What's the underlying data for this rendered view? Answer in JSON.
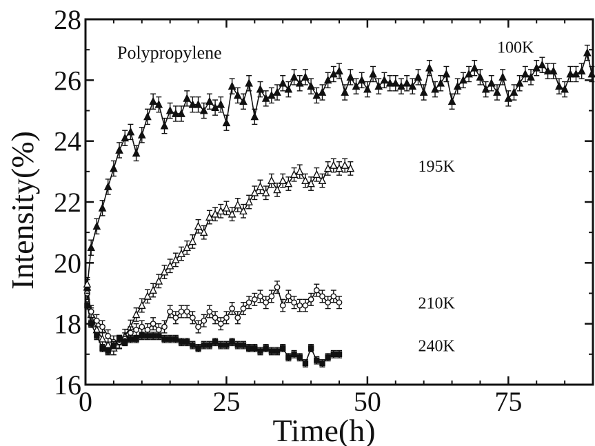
{
  "chart_data": {
    "type": "scatter",
    "title": "",
    "annotation": "Polypropylene",
    "xlabel": "Time(h)",
    "ylabel": "Intensity(%)",
    "xlim": [
      0,
      90
    ],
    "ylim": [
      16,
      28
    ],
    "x_ticks": [
      0,
      25,
      50,
      75
    ],
    "x_tick_labels": [
      "0",
      "25",
      "50",
      "75"
    ],
    "y_ticks": [
      16,
      18,
      20,
      22,
      24,
      26,
      28
    ],
    "y_tick_labels": [
      "16",
      "18",
      "20",
      "22",
      "24",
      "26",
      "28"
    ],
    "grid": false,
    "legend": "none",
    "series": [
      {
        "name": "100K",
        "marker": "filled-triangle",
        "error_bar": 0.25,
        "points": [
          [
            0.3,
            19.2
          ],
          [
            1,
            20.5
          ],
          [
            2,
            21.2
          ],
          [
            3,
            21.8
          ],
          [
            4,
            22.5
          ],
          [
            5,
            23.1
          ],
          [
            6,
            23.7
          ],
          [
            7,
            24.1
          ],
          [
            8,
            24.3
          ],
          [
            9,
            23.6
          ],
          [
            10,
            24.2
          ],
          [
            11,
            24.8
          ],
          [
            12,
            25.3
          ],
          [
            13,
            25.2
          ],
          [
            14,
            24.5
          ],
          [
            15,
            25.0
          ],
          [
            16,
            24.9
          ],
          [
            17,
            24.9
          ],
          [
            18,
            25.4
          ],
          [
            19,
            25.2
          ],
          [
            20,
            25.2
          ],
          [
            21,
            25.0
          ],
          [
            22,
            25.3
          ],
          [
            23,
            25.1
          ],
          [
            24,
            25.2
          ],
          [
            25,
            24.6
          ],
          [
            26,
            25.8
          ],
          [
            27,
            25.5
          ],
          [
            28,
            25.3
          ],
          [
            29,
            25.9
          ],
          [
            30,
            24.8
          ],
          [
            31,
            25.7
          ],
          [
            32,
            25.4
          ],
          [
            33,
            25.5
          ],
          [
            34,
            25.6
          ],
          [
            35,
            25.9
          ],
          [
            36,
            25.7
          ],
          [
            37,
            26.1
          ],
          [
            38,
            25.9
          ],
          [
            39,
            26.1
          ],
          [
            40,
            25.8
          ],
          [
            41,
            25.5
          ],
          [
            42,
            25.6
          ],
          [
            43,
            26.0
          ],
          [
            44,
            26.2
          ],
          [
            45,
            26.3
          ],
          [
            46,
            25.6
          ],
          [
            47,
            26.1
          ],
          [
            48,
            25.8
          ],
          [
            49,
            26.0
          ],
          [
            50,
            25.7
          ],
          [
            51,
            26.2
          ],
          [
            52,
            25.8
          ],
          [
            53,
            26.0
          ],
          [
            54,
            25.9
          ],
          [
            55,
            25.9
          ],
          [
            56,
            25.8
          ],
          [
            57,
            25.9
          ],
          [
            58,
            25.8
          ],
          [
            59,
            26.1
          ],
          [
            60,
            25.6
          ],
          [
            61,
            26.4
          ],
          [
            62,
            25.7
          ],
          [
            63,
            25.9
          ],
          [
            64,
            26.2
          ],
          [
            65,
            25.3
          ],
          [
            66,
            25.8
          ],
          [
            67,
            26.0
          ],
          [
            68,
            26.2
          ],
          [
            69,
            26.4
          ],
          [
            70,
            26.1
          ],
          [
            71,
            25.7
          ],
          [
            72,
            25.9
          ],
          [
            73,
            25.6
          ],
          [
            74,
            26.1
          ],
          [
            75,
            25.4
          ],
          [
            76,
            25.6
          ],
          [
            77,
            25.9
          ],
          [
            78,
            26.2
          ],
          [
            79,
            26.1
          ],
          [
            80,
            26.4
          ],
          [
            81,
            26.5
          ],
          [
            82,
            26.3
          ],
          [
            83,
            26.3
          ],
          [
            84,
            25.8
          ],
          [
            85,
            25.7
          ],
          [
            86,
            26.2
          ],
          [
            87,
            26.2
          ],
          [
            88,
            26.3
          ],
          [
            89,
            26.9
          ],
          [
            89.8,
            26.2
          ]
        ]
      },
      {
        "name": "195K",
        "marker": "open-triangle",
        "error_bar": 0.22,
        "points": [
          [
            0.3,
            19.3
          ],
          [
            1,
            18.3
          ],
          [
            2,
            17.8
          ],
          [
            3,
            17.5
          ],
          [
            4,
            17.3
          ],
          [
            5,
            17.2
          ],
          [
            6,
            17.4
          ],
          [
            7,
            17.6
          ],
          [
            8,
            17.9
          ],
          [
            9,
            18.3
          ],
          [
            10,
            18.6
          ],
          [
            11,
            18.9
          ],
          [
            12,
            19.1
          ],
          [
            13,
            19.4
          ],
          [
            14,
            19.7
          ],
          [
            15,
            19.9
          ],
          [
            16,
            20.1
          ],
          [
            17,
            20.3
          ],
          [
            18,
            20.5
          ],
          [
            19,
            20.7
          ],
          [
            20,
            21.2
          ],
          [
            21,
            21.0
          ],
          [
            22,
            21.5
          ],
          [
            23,
            21.6
          ],
          [
            24,
            21.7
          ],
          [
            25,
            21.8
          ],
          [
            26,
            21.6
          ],
          [
            27,
            21.9
          ],
          [
            28,
            21.7
          ],
          [
            29,
            22.0
          ],
          [
            30,
            22.3
          ],
          [
            31,
            22.5
          ],
          [
            32,
            22.3
          ],
          [
            33,
            22.7
          ],
          [
            34,
            22.4
          ],
          [
            35,
            22.7
          ],
          [
            36,
            22.6
          ],
          [
            37,
            22.9
          ],
          [
            38,
            23.0
          ],
          [
            39,
            22.7
          ],
          [
            40,
            22.6
          ],
          [
            41,
            22.9
          ],
          [
            42,
            22.7
          ],
          [
            43,
            23.1
          ],
          [
            44,
            23.2
          ],
          [
            45,
            23.1
          ],
          [
            46,
            23.2
          ],
          [
            47,
            23.1
          ]
        ]
      },
      {
        "name": "210K",
        "marker": "open-circle",
        "error_bar": 0.2,
        "points": [
          [
            0.3,
            19.0
          ],
          [
            1,
            18.4
          ],
          [
            2,
            18.1
          ],
          [
            3,
            17.9
          ],
          [
            4,
            17.6
          ],
          [
            5,
            17.4
          ],
          [
            6,
            17.4
          ],
          [
            7,
            17.5
          ],
          [
            8,
            17.7
          ],
          [
            9,
            17.8
          ],
          [
            10,
            17.9
          ],
          [
            11,
            17.8
          ],
          [
            12,
            18.0
          ],
          [
            13,
            17.8
          ],
          [
            14,
            17.9
          ],
          [
            15,
            18.4
          ],
          [
            16,
            18.2
          ],
          [
            17,
            18.4
          ],
          [
            18,
            18.4
          ],
          [
            19,
            18.2
          ],
          [
            20,
            17.9
          ],
          [
            21,
            18.1
          ],
          [
            22,
            18.4
          ],
          [
            23,
            18.2
          ],
          [
            24,
            18.0
          ],
          [
            25,
            18.2
          ],
          [
            26,
            18.5
          ],
          [
            27,
            18.2
          ],
          [
            28,
            18.5
          ],
          [
            29,
            18.7
          ],
          [
            30,
            18.8
          ],
          [
            31,
            18.9
          ],
          [
            32,
            18.7
          ],
          [
            33,
            18.9
          ],
          [
            34,
            19.2
          ],
          [
            35,
            18.6
          ],
          [
            36,
            18.9
          ],
          [
            37,
            18.7
          ],
          [
            38,
            18.6
          ],
          [
            39,
            18.6
          ],
          [
            40,
            18.8
          ],
          [
            41,
            19.1
          ],
          [
            42,
            18.9
          ],
          [
            43,
            18.7
          ],
          [
            44,
            18.9
          ],
          [
            45,
            18.7
          ]
        ]
      },
      {
        "name": "240K",
        "marker": "filled-square",
        "error_bar": 0.12,
        "points": [
          [
            0.3,
            18.6
          ],
          [
            1,
            18.0
          ],
          [
            2,
            17.6
          ],
          [
            3,
            17.2
          ],
          [
            4,
            17.1
          ],
          [
            5,
            17.3
          ],
          [
            6,
            17.5
          ],
          [
            7,
            17.4
          ],
          [
            8,
            17.5
          ],
          [
            9,
            17.5
          ],
          [
            10,
            17.6
          ],
          [
            11,
            17.6
          ],
          [
            12,
            17.6
          ],
          [
            13,
            17.6
          ],
          [
            14,
            17.5
          ],
          [
            15,
            17.5
          ],
          [
            16,
            17.5
          ],
          [
            17,
            17.4
          ],
          [
            18,
            17.4
          ],
          [
            19,
            17.3
          ],
          [
            20,
            17.2
          ],
          [
            21,
            17.3
          ],
          [
            22,
            17.3
          ],
          [
            23,
            17.4
          ],
          [
            24,
            17.3
          ],
          [
            25,
            17.3
          ],
          [
            26,
            17.4
          ],
          [
            27,
            17.3
          ],
          [
            28,
            17.3
          ],
          [
            29,
            17.2
          ],
          [
            30,
            17.2
          ],
          [
            31,
            17.1
          ],
          [
            32,
            17.2
          ],
          [
            33,
            17.1
          ],
          [
            34,
            17.1
          ],
          [
            35,
            17.2
          ],
          [
            36,
            16.9
          ],
          [
            37,
            17.0
          ],
          [
            38,
            16.9
          ],
          [
            39,
            16.7
          ],
          [
            40,
            17.2
          ],
          [
            41,
            16.8
          ],
          [
            42,
            16.7
          ],
          [
            43,
            16.9
          ],
          [
            44,
            17.0
          ],
          [
            45,
            17.0
          ]
        ]
      }
    ],
    "series_label_positions": [
      {
        "name": "100K",
        "x": 73,
        "y": 26.9
      },
      {
        "name": "195K",
        "x": 59,
        "y": 23.0
      },
      {
        "name": "210K",
        "x": 59,
        "y": 18.5
      },
      {
        "name": "240K",
        "x": 59,
        "y": 17.1
      }
    ]
  }
}
